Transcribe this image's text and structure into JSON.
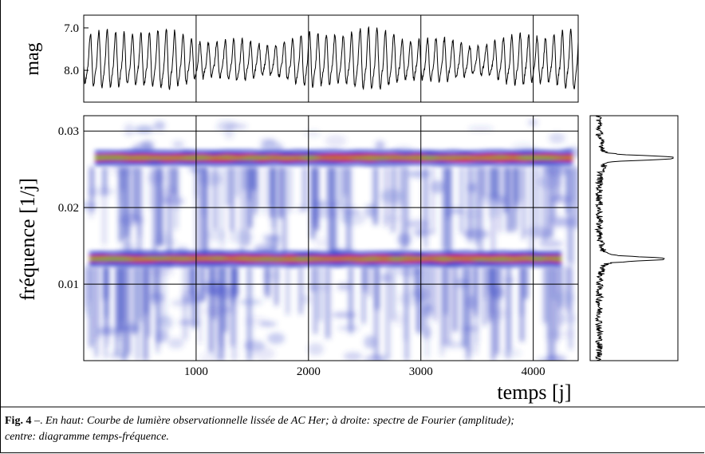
{
  "chart_data": [
    {
      "type": "line",
      "panel": "top",
      "ylabel": "mag",
      "yticks": [
        "7.0",
        "8.0"
      ],
      "ytick_values": [
        7.0,
        8.0
      ],
      "ylim": [
        8.75,
        6.7
      ],
      "y_inverted": true,
      "xlim": [
        0,
        4400
      ],
      "grid": true,
      "vgrid_x": [
        1000,
        2000,
        3000,
        4000
      ],
      "mean_mag": 7.8,
      "amplitude_mag": 0.55,
      "period_days": 75
    },
    {
      "type": "heatmap",
      "panel": "center",
      "xlabel": "temps [j]",
      "ylabel": "fréquence [1/j]",
      "xticks": [
        "1000",
        "2000",
        "3000",
        "4000"
      ],
      "xtick_values": [
        1000,
        2000,
        3000,
        4000
      ],
      "yticks": [
        "0.01",
        "0.02",
        "0.03"
      ],
      "ytick_values": [
        0.01,
        0.02,
        0.03
      ],
      "xlim": [
        0,
        4400
      ],
      "ylim": [
        0,
        0.032
      ],
      "grid": true,
      "ridges": [
        {
          "frequency": 0.0265,
          "x_start": 100,
          "x_end": 4350
        },
        {
          "frequency": 0.0133,
          "x_start": 50,
          "x_end": 4250
        }
      ],
      "colormap": [
        "#ffffff",
        "#2a35c8",
        "#e8233a",
        "#3ecf4a"
      ]
    },
    {
      "type": "line",
      "panel": "right",
      "orientation": "vertical",
      "ylim": [
        0,
        0.032
      ],
      "peaks": [
        {
          "frequency": 0.0265,
          "amplitude": 1.0
        },
        {
          "frequency": 0.0133,
          "amplitude": 0.77
        }
      ]
    }
  ],
  "caption": {
    "fig_label": "Fig. 4",
    "dash": " –. ",
    "text_line1": "En haut: Courbe de lumière observationnelle lissée de AC Her; à droite: spectre de Fourier (amplitude);",
    "text_line2": "centre: diagramme temps-fréquence."
  }
}
